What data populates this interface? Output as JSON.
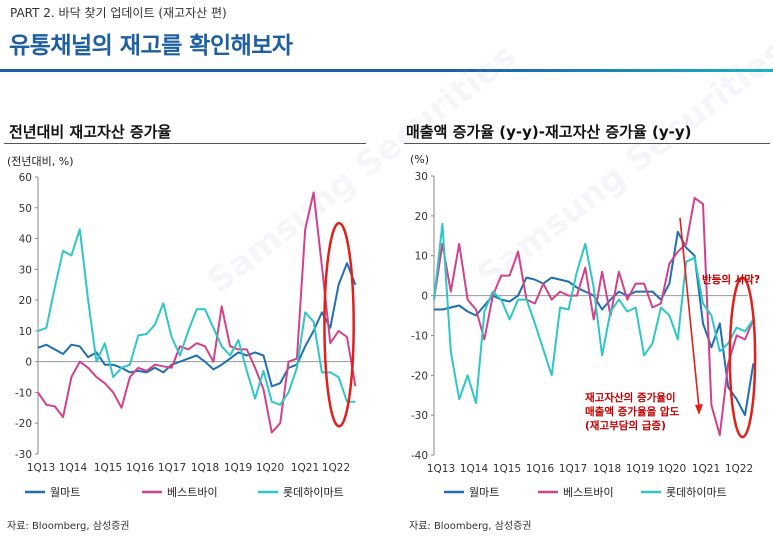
{
  "header": {
    "part_label": "PART 2. 바닥 찾기 업데이트 (재고자산 편)",
    "title": "유통채널의 재고를 확인해보자"
  },
  "watermark": "Samsung Securities",
  "colors": {
    "walmart": "#1f6fb2",
    "bestbuy": "#d2418b",
    "lotte": "#2fc6c8",
    "highlight": "#e0201b",
    "title": "#1d5fa0"
  },
  "chart_data": [
    {
      "type": "line",
      "title": "전년대비 재고자산 증가율",
      "unit_label": "(전년대비, %)",
      "source": "자료: Bloomberg, 삼성증권",
      "ylim": [
        -30,
        60
      ],
      "yticks": [
        -30,
        -20,
        -10,
        0,
        10,
        20,
        30,
        40,
        50,
        60
      ],
      "xtick_labels": [
        "1Q13",
        "1Q14",
        "1Q15",
        "1Q16",
        "1Q17",
        "1Q18",
        "1Q19",
        "1Q20",
        "1Q21",
        "1Q22"
      ],
      "xlim": [
        0,
        37
      ],
      "legend_position": "bottom",
      "series": [
        {
          "name": "월마트",
          "color": "#1f6fb2",
          "values": [
            4.5,
            5.5,
            4,
            2.5,
            5.5,
            5,
            1.5,
            3,
            -1,
            -1,
            -2,
            -3.5,
            -3,
            -3.5,
            -2,
            -3.5,
            -1,
            0,
            1,
            2,
            0,
            -2.5,
            -1,
            1,
            3,
            2,
            3,
            2,
            -8,
            -7,
            -2,
            -1,
            5,
            10,
            16,
            11,
            25,
            32,
            25
          ]
        },
        {
          "name": "베스트바이",
          "color": "#d2418b",
          "values": [
            -10,
            -14,
            -14.5,
            -18,
            -5,
            0,
            -2,
            -5,
            -7,
            -10,
            -15,
            -5,
            -2,
            -3,
            -1,
            -1.5,
            -2,
            5,
            4,
            6,
            5,
            0,
            18,
            5,
            4,
            4,
            -2,
            -9,
            -23,
            -20,
            0,
            1,
            43,
            55,
            31,
            6,
            10,
            8,
            -8
          ]
        },
        {
          "name": "롯데하이마트",
          "color": "#2fc6c8",
          "values": [
            10,
            11,
            24,
            36,
            34.5,
            43,
            20,
            0,
            6,
            -5,
            -2,
            -1,
            8.5,
            9,
            12,
            19,
            8,
            2,
            10,
            17,
            17,
            11,
            5,
            2,
            7,
            -3,
            -12,
            -3,
            -13,
            -14,
            -10,
            -2,
            16,
            13,
            -3.5,
            -3.5,
            -5,
            -13,
            -13
          ]
        }
      ],
      "highlight_circle": {
        "shape": "ellipse",
        "x_range": [
          34.3,
          37.8
        ],
        "y_range": [
          -21,
          45
        ]
      }
    },
    {
      "type": "line",
      "title": "매출액 증가율 (y-y)-재고자산 증가율 (y-y)",
      "unit_label": "(%)",
      "source": "자료: Bloomberg, 삼성증권",
      "ylim": [
        -40,
        30
      ],
      "yticks": [
        -40,
        -30,
        -20,
        -10,
        0,
        10,
        20,
        30
      ],
      "xtick_labels": [
        "1Q13",
        "1Q14",
        "1Q15",
        "1Q16",
        "1Q17",
        "1Q18",
        "1Q19",
        "1Q20",
        "1Q21",
        "1Q22"
      ],
      "xlim": [
        0,
        37
      ],
      "legend_position": "bottom",
      "series": [
        {
          "name": "월마트",
          "color": "#1f6fb2",
          "values": [
            -3.5,
            -3.5,
            -3,
            -2.5,
            -4,
            -5,
            -2.5,
            0,
            -1,
            -1.5,
            0,
            4.5,
            4,
            3,
            4.5,
            4,
            3.5,
            2,
            1,
            0,
            -3.5,
            -1,
            1,
            0,
            1,
            1,
            1,
            -1,
            3,
            16,
            12,
            10,
            -7,
            -13,
            -7,
            -23,
            -26,
            -30,
            -17
          ]
        },
        {
          "name": "베스트바이",
          "color": "#d2418b",
          "values": [
            -1,
            13,
            1,
            13,
            -1,
            -3.5,
            -11,
            0,
            5,
            5,
            11,
            -1,
            -2,
            3,
            -1,
            1,
            0,
            0,
            7,
            -6,
            6,
            -5,
            6,
            -1,
            3,
            3,
            -3,
            -2,
            8,
            11,
            13,
            24.5,
            23,
            -27.5,
            -35,
            -17,
            -10,
            -11,
            -6
          ]
        },
        {
          "name": "롯데하이마트",
          "color": "#2fc6c8",
          "values": [
            -1,
            18,
            -14,
            -26,
            -20,
            -27,
            -4,
            1,
            -1,
            -6,
            -1,
            -1,
            -7,
            -13.5,
            -20,
            -3,
            -3.5,
            6,
            13,
            2,
            -15,
            -4,
            -1,
            -4,
            -3,
            -15,
            -12,
            -3,
            -5,
            -11,
            8.5,
            9.5,
            -2,
            -5,
            -14,
            -12,
            -8,
            -9,
            -6
          ]
        }
      ],
      "highlight_circle": {
        "shape": "ellipse",
        "x_range": [
          35.2,
          38.2
        ],
        "y_range": [
          -35.5,
          4.5
        ]
      },
      "annotations": [
        {
          "text": "반등의 서막?",
          "color": "#c00000"
        },
        {
          "text_lines": [
            "재고자산의 증가율이",
            "매출액 증가율을 압도",
            "(재고부담의 급증)"
          ],
          "color": "#c00000"
        }
      ]
    }
  ]
}
